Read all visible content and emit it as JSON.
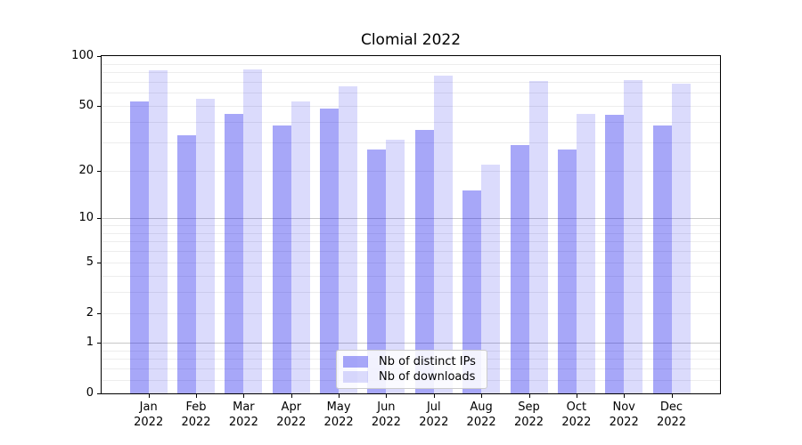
{
  "title": "Clomial 2022",
  "chart_data": {
    "type": "bar",
    "title": "Clomial 2022",
    "categories": [
      "Jan 2022",
      "Feb 2022",
      "Mar 2022",
      "Apr 2022",
      "May 2022",
      "Jun 2022",
      "Jul 2022",
      "Aug 2022",
      "Sep 2022",
      "Oct 2022",
      "Nov 2022",
      "Dec 2022"
    ],
    "months": [
      "Jan",
      "Feb",
      "Mar",
      "Apr",
      "May",
      "Jun",
      "Jul",
      "Aug",
      "Sep",
      "Oct",
      "Nov",
      "Dec"
    ],
    "year_label": "2022",
    "series": [
      {
        "name": "Nb of distinct IPs",
        "color": "rgba(12,12,235,0.36)",
        "values": [
          53,
          33,
          45,
          38,
          48,
          27,
          36,
          15,
          29,
          27,
          44,
          38
        ]
      },
      {
        "name": "Nb of downloads",
        "color": "rgba(12,12,235,0.15)",
        "values": [
          82,
          55,
          83,
          53,
          66,
          31,
          76,
          22,
          71,
          45,
          72,
          68
        ]
      }
    ],
    "yscale": "log1p",
    "ylim": [
      0,
      100
    ],
    "yticks": [
      0,
      1,
      2,
      5,
      10,
      20,
      50,
      100
    ],
    "grid": {
      "on": true,
      "major_ticks": [
        1,
        10,
        100
      ],
      "minor_ticks": [
        0.2,
        0.4,
        0.6,
        0.8,
        2,
        3,
        4,
        5,
        6,
        7,
        8,
        9,
        20,
        30,
        40,
        50,
        60,
        70,
        80,
        90
      ],
      "major_color": "#c8c8c8",
      "minor_color": "#ededed"
    },
    "legend": {
      "position": "lower center",
      "entries": [
        "Nb of distinct IPs",
        "Nb of downloads"
      ]
    }
  }
}
